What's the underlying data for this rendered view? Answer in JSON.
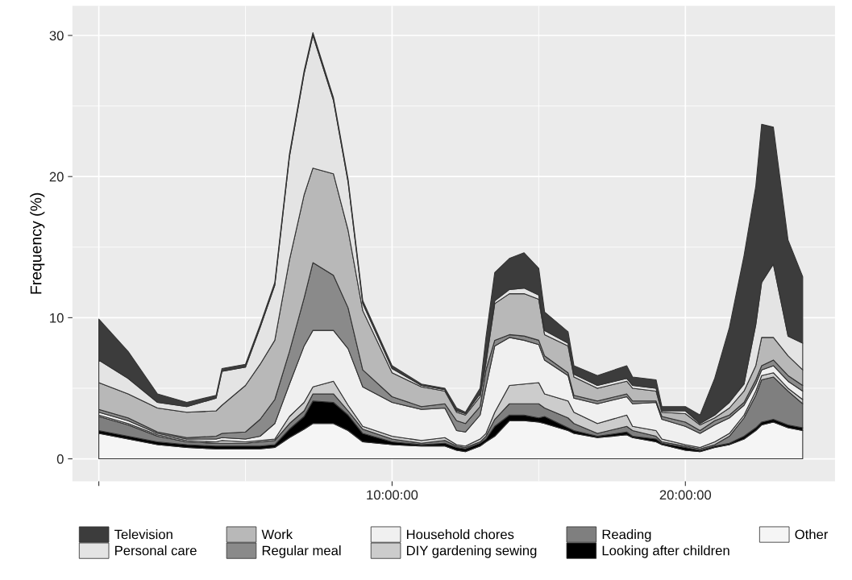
{
  "chart_data": {
    "type": "area",
    "stacked": true,
    "ylabel": "Frequency (%)",
    "x": [
      0,
      1,
      2,
      3,
      4,
      4.2,
      5,
      5.5,
      6,
      6.5,
      7,
      7.3,
      8,
      8.5,
      9,
      10,
      11,
      11.8,
      12.2,
      12.5,
      13,
      13.2,
      13.5,
      14,
      14.5,
      15,
      15.2,
      16,
      16.2,
      17,
      18,
      18.2,
      19,
      19.2,
      20,
      20.5,
      21,
      21.5,
      22,
      22.4,
      22.6,
      23,
      23.5,
      24
    ],
    "series": [
      {
        "name": "Other",
        "color": "#f5f5f5",
        "values": [
          1.8,
          1.4,
          1.0,
          0.8,
          0.7,
          0.7,
          0.7,
          0.7,
          0.8,
          1.5,
          2.1,
          2.5,
          2.5,
          2.0,
          1.2,
          1.0,
          0.9,
          0.9,
          0.6,
          0.5,
          0.9,
          1.2,
          1.6,
          2.7,
          2.7,
          2.6,
          2.5,
          2.0,
          1.8,
          1.5,
          1.7,
          1.5,
          1.2,
          1.0,
          0.6,
          0.5,
          0.8,
          1.0,
          1.4,
          2.0,
          2.4,
          2.6,
          2.2,
          2.0
        ]
      },
      {
        "name": "Looking after children",
        "color": "#000000",
        "values": [
          0.2,
          0.2,
          0.2,
          0.2,
          0.2,
          0.2,
          0.2,
          0.2,
          0.2,
          0.6,
          0.9,
          1.6,
          1.5,
          1.1,
          0.6,
          0.2,
          0.1,
          0.2,
          0.2,
          0.2,
          0.2,
          0.2,
          0.7,
          0.4,
          0.4,
          0.3,
          0.5,
          0.2,
          0.2,
          0.1,
          0.2,
          0.1,
          0.2,
          0.1,
          0.2,
          0.1,
          0.1,
          0.1,
          0.2,
          0.2,
          0.2,
          0.2,
          0.2,
          0.2
        ]
      },
      {
        "name": "Reading",
        "color": "#7f7f7f",
        "values": [
          1.0,
          0.8,
          0.4,
          0.2,
          0.2,
          0.2,
          0.2,
          0.3,
          0.3,
          0.4,
          0.4,
          0.5,
          0.6,
          0.3,
          0.3,
          0.2,
          0.1,
          0.2,
          0.1,
          0.1,
          0.1,
          0.2,
          0.5,
          0.8,
          0.8,
          1.0,
          0.6,
          0.7,
          0.5,
          0.2,
          0.4,
          0.4,
          0.2,
          0.1,
          0.1,
          0.1,
          0.1,
          0.5,
          1.3,
          2.3,
          3.0,
          3.0,
          2.4,
          1.7
        ]
      },
      {
        "name": "DIY gardening sewing",
        "color": "#cccccc",
        "values": [
          0.1,
          0.1,
          0.1,
          0.1,
          0.1,
          0.2,
          0.1,
          0.1,
          0.1,
          0.5,
          0.6,
          0.5,
          0.9,
          0.4,
          0.2,
          0.2,
          0.2,
          0.2,
          0.1,
          0.1,
          0.2,
          0.2,
          0.5,
          1.3,
          1.4,
          1.5,
          1.0,
          1.2,
          0.8,
          0.7,
          0.8,
          0.3,
          0.4,
          0.2,
          0.1,
          0.1,
          0.2,
          0.2,
          0.2,
          0.3,
          0.3,
          0.3,
          0.2,
          0.3
        ]
      },
      {
        "name": "Household chores",
        "color": "#f0f0f0",
        "values": [
          0.2,
          0.2,
          0.1,
          0.1,
          0.2,
          0.2,
          0.2,
          0.3,
          1.1,
          2.3,
          4.0,
          4.0,
          3.6,
          4.0,
          2.8,
          2.4,
          2.2,
          2.1,
          1.0,
          1.0,
          1.7,
          3.3,
          4.7,
          3.4,
          3.1,
          2.7,
          2.4,
          1.8,
          1.0,
          1.4,
          1.3,
          1.6,
          2.0,
          1.4,
          1.3,
          1.0,
          1.2,
          1.1,
          0.7,
          0.5,
          0.4,
          0.5,
          0.5,
          0.6
        ]
      },
      {
        "name": "Regular meal",
        "color": "#8a8a8a",
        "values": [
          0.2,
          0.2,
          0.1,
          0.1,
          0.2,
          0.3,
          0.5,
          1.2,
          1.7,
          2.3,
          3.4,
          4.8,
          3.9,
          2.9,
          1.2,
          0.4,
          0.2,
          0.3,
          0.7,
          0.6,
          0.6,
          1.2,
          0.4,
          0.2,
          0.3,
          0.3,
          0.3,
          0.2,
          0.2,
          0.2,
          0.2,
          0.2,
          0.1,
          0.2,
          0.3,
          0.2,
          0.3,
          0.2,
          0.2,
          0.3,
          0.3,
          0.4,
          0.4,
          0.4
        ]
      },
      {
        "name": "Work",
        "color": "#b8b8b8",
        "values": [
          1.9,
          1.7,
          1.7,
          1.8,
          1.8,
          2.0,
          3.3,
          3.9,
          4.2,
          6.5,
          7.3,
          6.7,
          7.2,
          5.5,
          4.2,
          1.7,
          1.4,
          0.9,
          0.6,
          0.6,
          0.7,
          0.5,
          2.6,
          2.9,
          3.0,
          2.9,
          1.5,
          1.9,
          1.3,
          0.9,
          0.9,
          0.9,
          0.7,
          0.3,
          0.6,
          0.4,
          0.2,
          0.5,
          0.8,
          1.0,
          2.0,
          1.6,
          1.4,
          1.1
        ]
      },
      {
        "name": "Personal care",
        "color": "#e4e4e4",
        "values": [
          1.6,
          1.1,
          0.4,
          0.4,
          0.9,
          2.4,
          1.3,
          2.6,
          3.9,
          7.3,
          8.6,
          9.4,
          5.2,
          3.4,
          0.5,
          0.3,
          0.1,
          0.1,
          0.1,
          0.1,
          0.2,
          0.2,
          0.2,
          0.3,
          0.4,
          0.3,
          0.3,
          0.2,
          0.2,
          0.2,
          0.2,
          0.2,
          0.2,
          0.1,
          0.2,
          0.1,
          0.2,
          0.4,
          0.5,
          2.9,
          3.9,
          5.2,
          1.4,
          1.9
        ]
      },
      {
        "name": "Television",
        "color": "#3c3c3c",
        "values": [
          2.9,
          1.9,
          0.6,
          0.3,
          0.2,
          0.2,
          0.2,
          0.2,
          0.2,
          0.2,
          0.2,
          0.2,
          0.2,
          0.2,
          0.2,
          0.2,
          0.1,
          0.1,
          0.2,
          0.1,
          0.4,
          1.6,
          2.0,
          2.2,
          2.5,
          1.9,
          1.3,
          0.8,
          0.6,
          0.7,
          0.9,
          0.6,
          0.6,
          0.3,
          0.3,
          0.6,
          2.6,
          5.3,
          9.1,
          9.8,
          11.2,
          9.7,
          6.8,
          4.7
        ]
      }
    ],
    "xlim": [
      -0.9,
      25.1
    ],
    "xticks": [
      {
        "value": 0,
        "label": null
      },
      {
        "value": 10,
        "label": "10:00:00"
      },
      {
        "value": 20,
        "label": "20:00:00"
      }
    ],
    "ylim": [
      -1.6,
      32.1
    ],
    "yticks": [
      0,
      10,
      20,
      30
    ],
    "grid": true,
    "legend": "bottom"
  }
}
